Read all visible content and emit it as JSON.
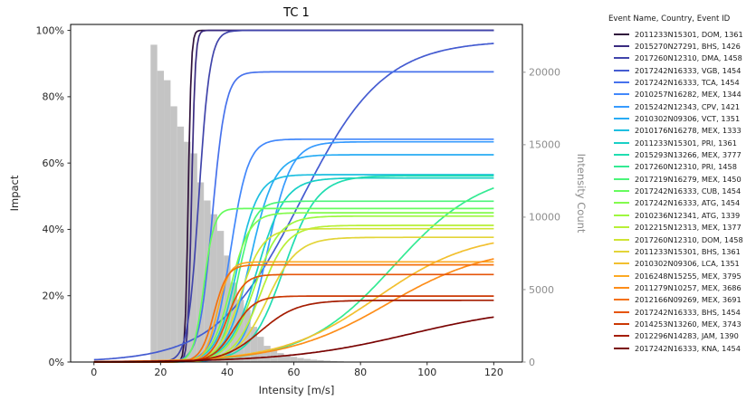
{
  "figure": {
    "title": "TC 1"
  },
  "legend": {
    "title": "Event Name, Country, Event ID"
  },
  "axes": {
    "x": {
      "label": "Intensity [m/s]",
      "ticks": [
        0,
        20,
        40,
        60,
        80,
        100,
        120
      ]
    },
    "y_left": {
      "label": "Impact",
      "ticks": [
        0,
        20,
        40,
        60,
        80,
        100
      ],
      "tick_suffix": "%"
    },
    "y_right": {
      "label": "Intensity Count",
      "ticks": [
        0,
        5000,
        10000,
        15000,
        20000
      ]
    }
  },
  "colors": {
    "histogram": "#c4c4c4",
    "axis_text": "#262626",
    "right_axis_text": "#8d8d8d",
    "spine": "#000000"
  },
  "chart_data": {
    "type": "line+histogram",
    "title": "TC 1",
    "xlabel": "Intensity [m/s]",
    "ylabel": "Impact",
    "ylabel_right": "Intensity Count",
    "legend_title": "Event Name, Country, Event ID",
    "grid": false,
    "xlim": [
      -7,
      128.6
    ],
    "ylim_impact_pct": [
      0,
      101.8
    ],
    "ylim_count": [
      0,
      23300
    ],
    "histogram": {
      "bin_start": 17,
      "bin_width": 2,
      "counts": [
        21900,
        20100,
        19450,
        17650,
        16250,
        15200,
        14400,
        12400,
        11150,
        10200,
        9050,
        7350,
        5480,
        4300,
        3610,
        2430,
        1740,
        1120,
        810,
        620,
        470,
        360,
        280,
        215,
        165,
        125,
        95,
        70,
        50
      ]
    },
    "series_model": "impact_pct(x) = plateau_pct / (1 + exp(-steepness * (x - midpoint_ms)))",
    "series": [
      {
        "label": "2011233N15301, DOM, 1361",
        "color": "#30123b",
        "plateau_pct": 100,
        "midpoint_ms": 28.3,
        "steepness": 2.2
      },
      {
        "label": "2015270N27291, BHS, 1426",
        "color": "#3a2b80",
        "plateau_pct": 100,
        "midpoint_ms": 29.3,
        "steepness": 1.8
      },
      {
        "label": "2017260N12310, DMA, 1458",
        "color": "#4145ab",
        "plateau_pct": 100,
        "midpoint_ms": 31.5,
        "steepness": 0.6
      },
      {
        "label": "2017242N16333, VGB, 1454",
        "color": "#455cd1",
        "plateau_pct": 97,
        "midpoint_ms": 62,
        "steepness": 0.08
      },
      {
        "label": "2017242N16333, TCA, 1454",
        "color": "#4772ec",
        "plateau_pct": 87.5,
        "midpoint_ms": 35.5,
        "steepness": 0.5
      },
      {
        "label": "2010257N16282, MEX, 1344",
        "color": "#4288fb",
        "plateau_pct": 67.2,
        "midpoint_ms": 41,
        "steepness": 0.38
      },
      {
        "label": "2015242N12343, CPV, 1421",
        "color": "#379bfe",
        "plateau_pct": 66.4,
        "midpoint_ms": 52,
        "steepness": 0.28
      },
      {
        "label": "2010302N09306, VCT, 1351",
        "color": "#29acf4",
        "plateau_pct": 62.5,
        "midpoint_ms": 47,
        "steepness": 0.28
      },
      {
        "label": "2010176N16278, MEX, 1333",
        "color": "#1fbfe0",
        "plateau_pct": 56.5,
        "midpoint_ms": 43,
        "steepness": 0.32
      },
      {
        "label": "2011233N15301, PRI, 1361",
        "color": "#19d0c6",
        "plateau_pct": 55.5,
        "midpoint_ms": 49,
        "steepness": 0.24
      },
      {
        "label": "2015293N13266, MEX, 3777",
        "color": "#20ddb0",
        "plateau_pct": 56.2,
        "midpoint_ms": 57,
        "steepness": 0.2
      },
      {
        "label": "2017260N12310, PRI, 1458",
        "color": "#33ea93",
        "plateau_pct": 58,
        "midpoint_ms": 90,
        "steepness": 0.075
      },
      {
        "label": "2017219N16279, MEX, 1450",
        "color": "#4bf579",
        "plateau_pct": 48.5,
        "midpoint_ms": 43,
        "steepness": 0.4
      },
      {
        "label": "2017242N16333, CUB, 1454",
        "color": "#66fc5e",
        "plateau_pct": 46.3,
        "midpoint_ms": 33,
        "steepness": 0.65
      },
      {
        "label": "2017242N16333, ATG, 1454",
        "color": "#83fb4d",
        "plateau_pct": 45,
        "midpoint_ms": 41,
        "steepness": 0.35
      },
      {
        "label": "2010236N12341, ATG, 1339",
        "color": "#9ef73f",
        "plateau_pct": 44,
        "midpoint_ms": 48,
        "steepness": 0.26
      },
      {
        "label": "2012215N12313, MEX, 1377",
        "color": "#b8ef36",
        "plateau_pct": 41.2,
        "midpoint_ms": 50,
        "steepness": 0.25
      },
      {
        "label": "2017260N12310, DOM, 1458",
        "color": "#d0e434",
        "plateau_pct": 40.2,
        "midpoint_ms": 44,
        "steepness": 0.3
      },
      {
        "label": "2011233N15301, BHS, 1361",
        "color": "#e3d438",
        "plateau_pct": 37.6,
        "midpoint_ms": 52,
        "steepness": 0.22
      },
      {
        "label": "2010302N09306, LCA, 1351",
        "color": "#f2c02f",
        "plateau_pct": 39,
        "midpoint_ms": 85,
        "steepness": 0.07
      },
      {
        "label": "2016248N15255, MEX, 3795",
        "color": "#fca923",
        "plateau_pct": 30.2,
        "midpoint_ms": 37,
        "steepness": 0.55
      },
      {
        "label": "2011279N10257, MEX, 3686",
        "color": "#fd8d19",
        "plateau_pct": 35,
        "midpoint_ms": 88,
        "steepness": 0.065
      },
      {
        "label": "2012166N09269, MEX, 3691",
        "color": "#f4710f",
        "plateau_pct": 29.3,
        "midpoint_ms": 36,
        "steepness": 0.5
      },
      {
        "label": "2017242N16333, BHS, 1454",
        "color": "#e65509",
        "plateau_pct": 26.4,
        "midpoint_ms": 40,
        "steepness": 0.4
      },
      {
        "label": "2014253N13260, MEX, 3743",
        "color": "#cb3804",
        "plateau_pct": 19.9,
        "midpoint_ms": 42,
        "steepness": 0.32
      },
      {
        "label": "2012296N14283, JAM, 1390",
        "color": "#a51d02",
        "plateau_pct": 18.6,
        "midpoint_ms": 50,
        "steepness": 0.18
      },
      {
        "label": "2017242N16333, KNA, 1454",
        "color": "#7a0403",
        "plateau_pct": 17,
        "midpoint_ms": 95,
        "steepness": 0.055
      }
    ]
  }
}
